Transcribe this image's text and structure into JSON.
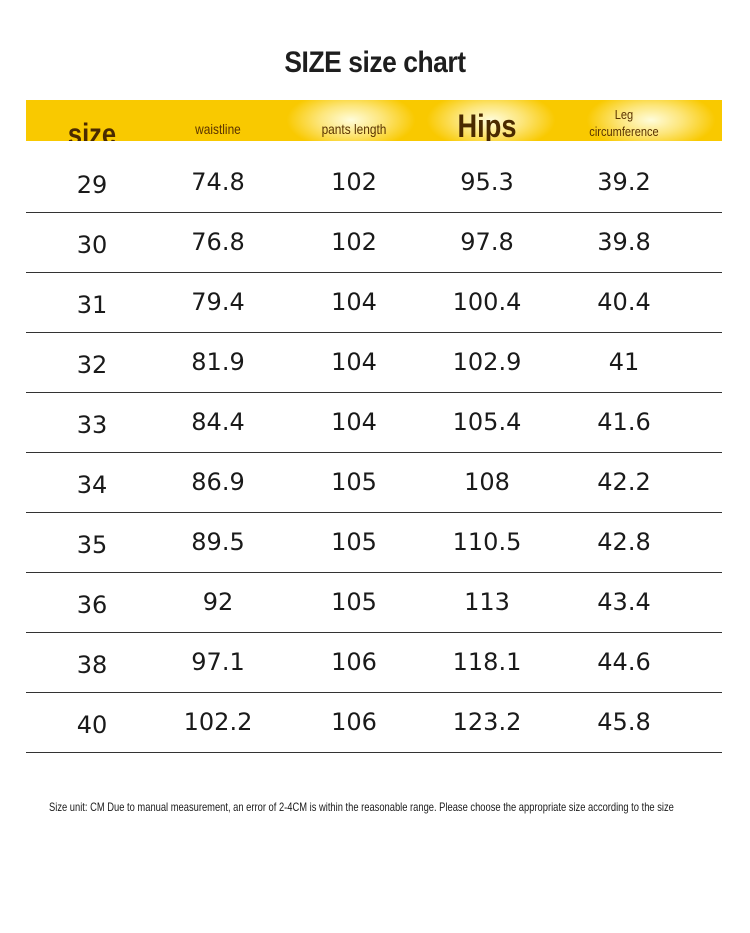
{
  "title": "SIZE size chart",
  "columns": [
    "size",
    "waistline",
    "pants length",
    "Hips",
    "Leg circumference"
  ],
  "rows": [
    [
      "29",
      "74.8",
      "102",
      "95.3",
      "39.2"
    ],
    [
      "30",
      "76.8",
      "102",
      "97.8",
      "39.8"
    ],
    [
      "31",
      "79.4",
      "104",
      "100.4",
      "40.4"
    ],
    [
      "32",
      "81.9",
      "104",
      "102.9",
      "41"
    ],
    [
      "33",
      "84.4",
      "104",
      "105.4",
      "41.6"
    ],
    [
      "34",
      "86.9",
      "105",
      "108",
      "42.2"
    ],
    [
      "35",
      "89.5",
      "105",
      "110.5",
      "42.8"
    ],
    [
      "36",
      "92",
      "105",
      "113",
      "43.4"
    ],
    [
      "38",
      "97.1",
      "106",
      "118.1",
      "44.6"
    ],
    [
      "40",
      "102.2",
      "106",
      "123.2",
      "45.8"
    ]
  ],
  "note": "Size unit: CM Due to manual measurement, an error of 2-4CM is within the reasonable range. Please choose the appropriate size according to the size",
  "colors": {
    "header_band": "#f9c900",
    "header_text": "#4a2a00",
    "row_divider": "#333333"
  }
}
